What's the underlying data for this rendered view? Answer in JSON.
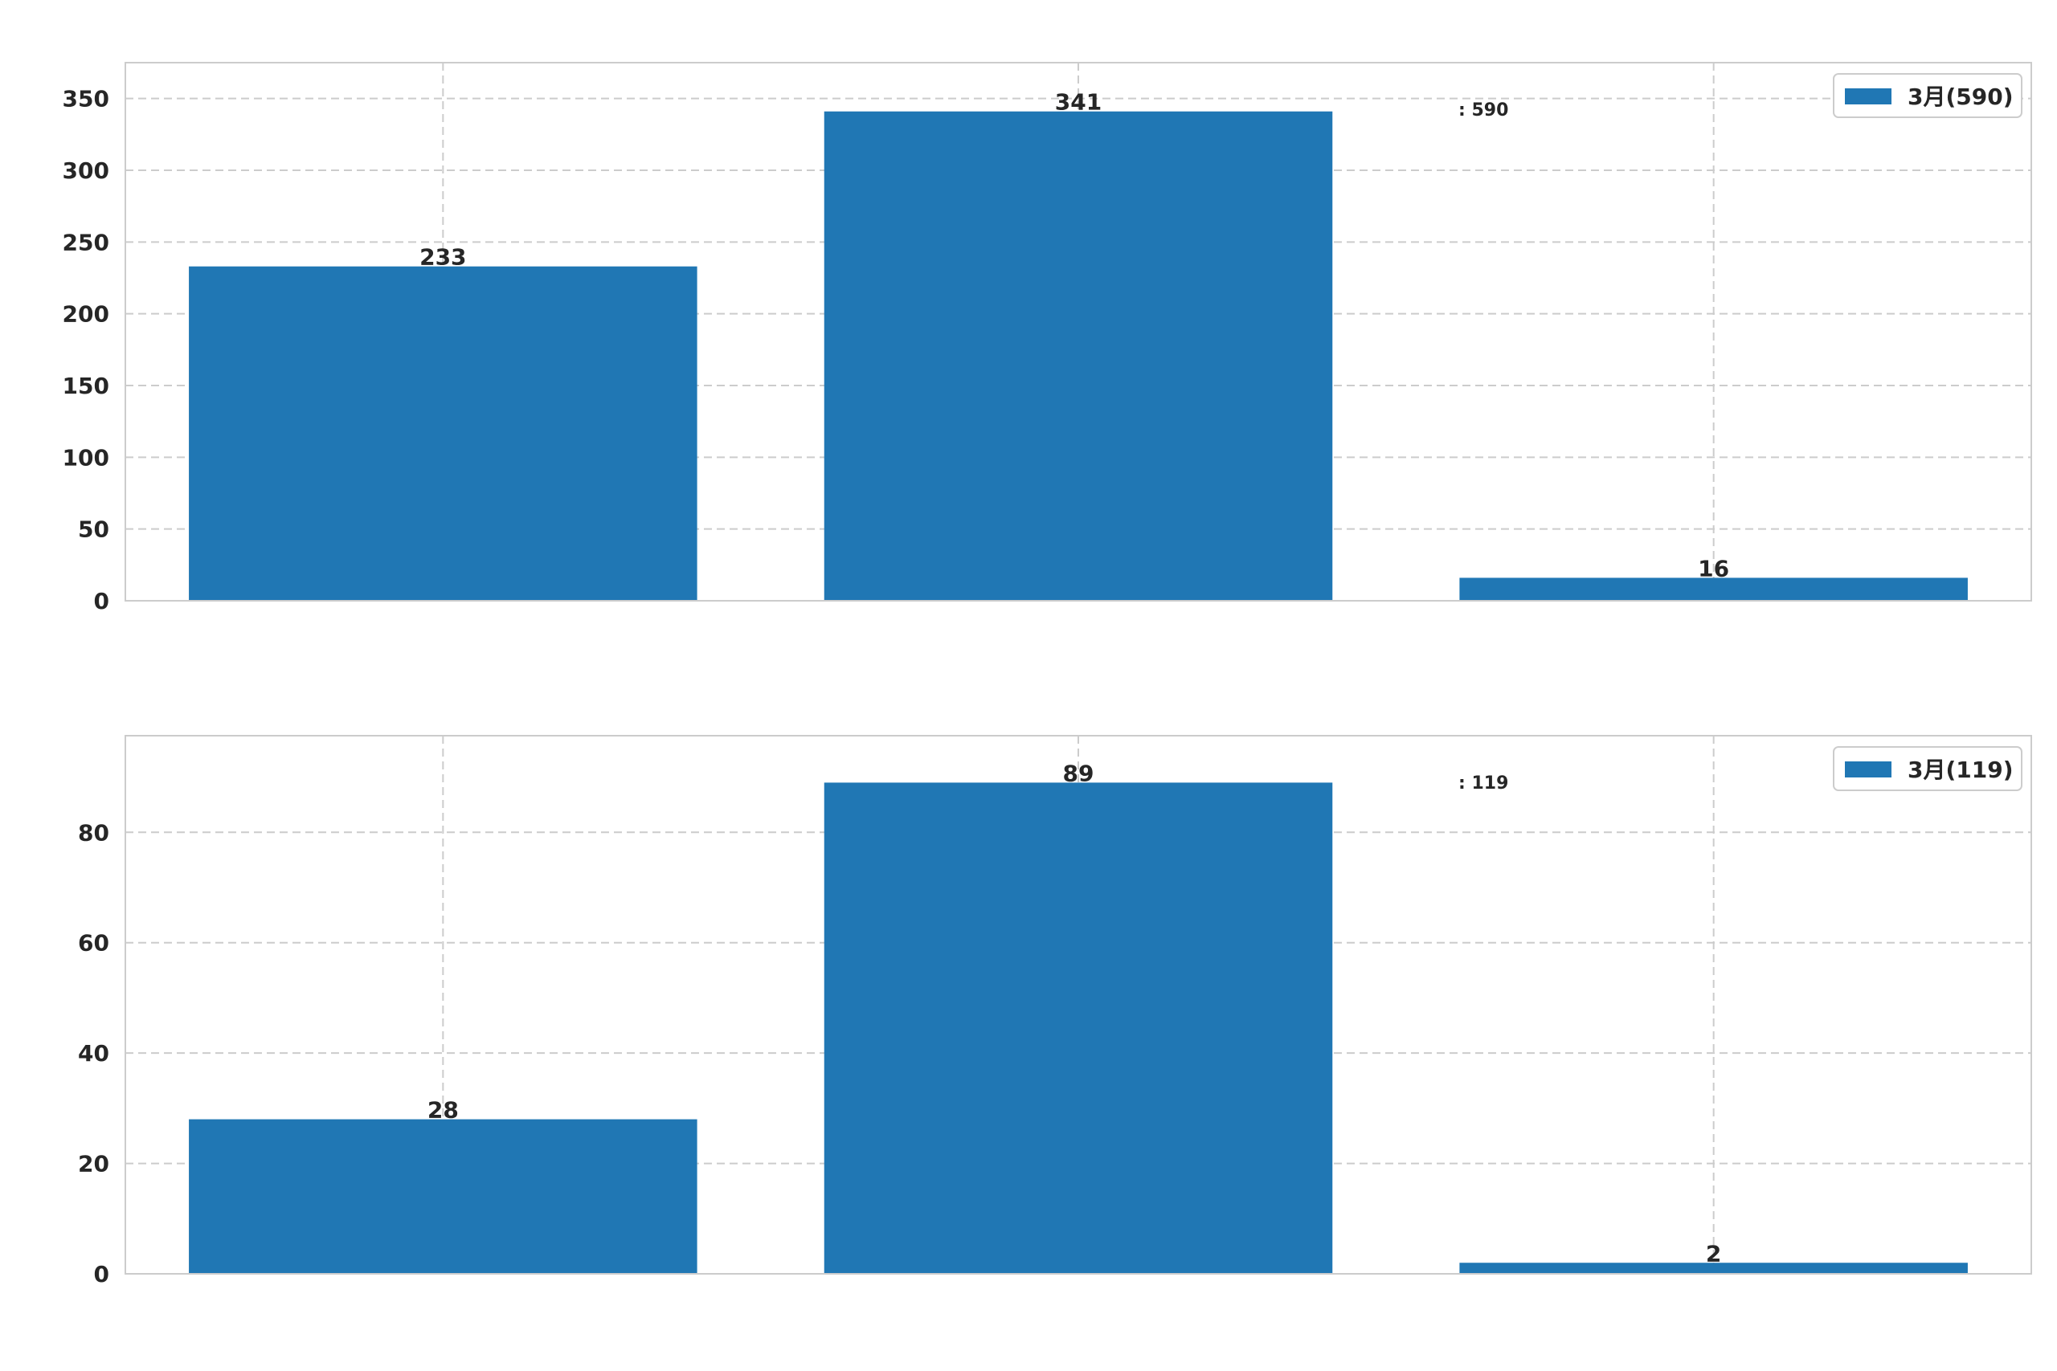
{
  "colors": {
    "bar": "#2077b4",
    "grid": "#cccccc",
    "text": "#262626"
  },
  "chart_data": [
    {
      "type": "bar",
      "title": "",
      "xlabel": "",
      "ylabel": "",
      "categories": [
        "",
        "",
        ""
      ],
      "values": [
        233,
        341,
        16
      ],
      "data_labels": [
        "233",
        "341",
        "16"
      ],
      "ylim": [
        0,
        375
      ],
      "yticks": [
        0,
        50,
        100,
        150,
        200,
        250,
        300,
        350
      ],
      "ytick_labels": [
        "0",
        "50",
        "100",
        "150",
        "200",
        "250",
        "300",
        "350"
      ],
      "grid": true,
      "legend": {
        "placement": "top-right",
        "entries": [
          "3月(590)"
        ]
      },
      "annotation": ": 590"
    },
    {
      "type": "bar",
      "title": "",
      "xlabel": "",
      "ylabel": "",
      "categories": [
        "",
        "",
        ""
      ],
      "values": [
        28,
        89,
        2
      ],
      "data_labels": [
        "28",
        "89",
        "2"
      ],
      "ylim": [
        0,
        97.5
      ],
      "yticks": [
        0,
        20,
        40,
        60,
        80
      ],
      "ytick_labels": [
        "0",
        "20",
        "40",
        "60",
        "80"
      ],
      "grid": true,
      "legend": {
        "placement": "top-right",
        "entries": [
          "3月(119)"
        ]
      },
      "annotation": ": 119"
    }
  ]
}
